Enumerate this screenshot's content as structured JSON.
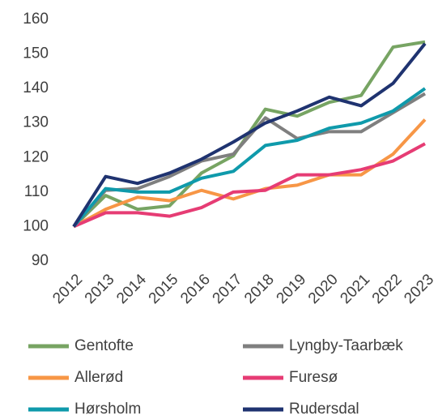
{
  "chart_data": {
    "type": "line",
    "categories": [
      "2012",
      "2013",
      "2014",
      "2015",
      "2016",
      "2017",
      "2018",
      "2019",
      "2020",
      "2021",
      "2022",
      "2023"
    ],
    "series": [
      {
        "name": "Gentofte",
        "color": "#77a463",
        "values": [
          100,
          109,
          105,
          106,
          115.5,
          120.5,
          134,
          132,
          136,
          138,
          152,
          153.5
        ]
      },
      {
        "name": "Lyngby-Taarbæk",
        "color": "#7f7f7f",
        "values": [
          100,
          110.5,
          111,
          114.5,
          119,
          121,
          131.5,
          125.5,
          127.5,
          127.5,
          133,
          138.5
        ]
      },
      {
        "name": "Allerød",
        "color": "#f79646",
        "values": [
          100,
          105,
          108.5,
          107.5,
          110.5,
          108,
          111,
          112,
          115,
          115,
          121,
          131
        ]
      },
      {
        "name": "Furesø",
        "color": "#e63c74",
        "values": [
          100,
          104,
          104,
          103,
          105.5,
          110,
          110.5,
          115,
          115,
          116.5,
          119,
          124
        ]
      },
      {
        "name": "Hørsholm",
        "color": "#0f9aab",
        "values": [
          100,
          111,
          110,
          110,
          114,
          116,
          123.5,
          125,
          128.5,
          130,
          133.5,
          140
        ]
      },
      {
        "name": "Rudersdal",
        "color": "#1f3370",
        "values": [
          100,
          114.5,
          112.5,
          115.5,
          119.5,
          124.5,
          130,
          133.5,
          137.5,
          135,
          141.5,
          153
        ]
      }
    ],
    "ylim": [
      90,
      160
    ],
    "yticks": [
      90,
      100,
      110,
      120,
      130,
      140,
      150,
      160
    ],
    "grid": false
  }
}
